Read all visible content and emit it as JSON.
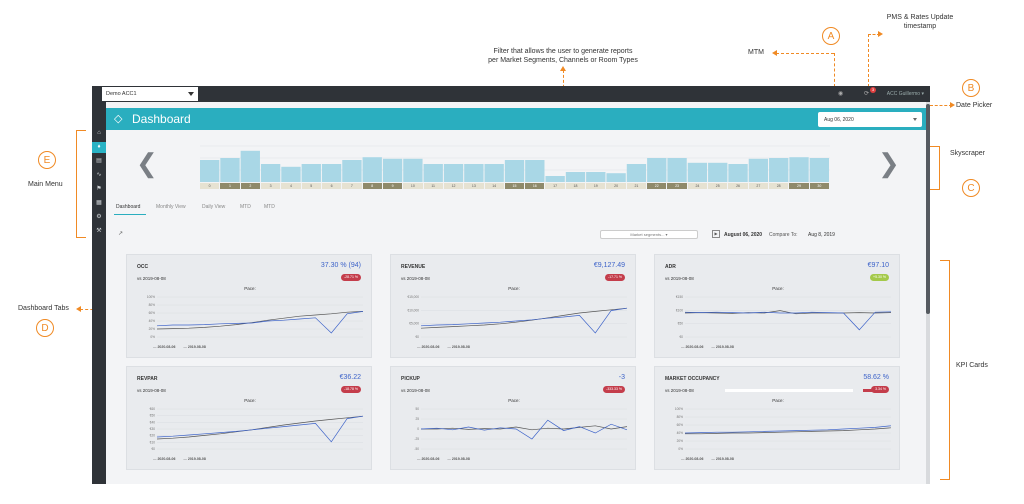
{
  "annotations": {
    "filter_note": "Filter that allows the user to generate reports\nper Market Segments, Channels or Room Types",
    "mtm": "MTM",
    "pms_note": "PMS & Rates Update\ntimestamp",
    "date_picker": "Date Picker",
    "skyscraper": "Skyscraper",
    "kpi_cards": "KPI Cards",
    "main_menu": "Main Menu",
    "dashboard_tabs": "Dashboard Tabs",
    "letters": {
      "a": "A",
      "b": "B",
      "c": "C",
      "d": "D",
      "e": "E"
    },
    "color": "#f08a24"
  },
  "topbar": {
    "account": "Demo ACC1",
    "notification_count": "3",
    "user": "ACC Guillermo ▾"
  },
  "sidebar": {
    "icons": [
      "home-icon",
      "diamond-icon",
      "bed-icon",
      "trend-icon",
      "flag-icon",
      "grid-icon",
      "gear-icon",
      "tools-icon"
    ],
    "active_index": 1
  },
  "header": {
    "title": "Dashboard",
    "date": "Aug 06, 2020",
    "accent": "#2aaebf"
  },
  "skyscraper": {
    "days": [
      "0",
      "1",
      "2",
      "3",
      "4",
      "5",
      "6",
      "7",
      "8",
      "9",
      "10",
      "11",
      "12",
      "13",
      "14",
      "15",
      "16",
      "17",
      "18",
      "19",
      "20",
      "21",
      "22",
      "23",
      "24",
      "25",
      "26",
      "27",
      "28",
      "29",
      "30"
    ],
    "occupancy": [
      0.55,
      0.6,
      0.78,
      0.45,
      0.38,
      0.45,
      0.45,
      0.55,
      0.62,
      0.58,
      0.58,
      0.45,
      0.45,
      0.45,
      0.45,
      0.55,
      0.55,
      0.15,
      0.25,
      0.25,
      0.22,
      0.45,
      0.6,
      0.6,
      0.48,
      0.48,
      0.45,
      0.58,
      0.6,
      0.62,
      0.6
    ],
    "weekend_days": [
      1,
      2,
      8,
      9,
      15,
      16,
      22,
      23,
      29,
      30
    ]
  },
  "tabs": [
    "Dashboard",
    "Monthly View",
    "Daily View",
    "MTD",
    "MTD"
  ],
  "filter": {
    "placeholder": "Market segments...",
    "date": "August 06, 2020",
    "compare_label": "Compare To:",
    "compare_date": "Aug 8, 2019"
  },
  "cards": [
    {
      "label": "OCC",
      "value": "37.30 % (94)",
      "vs": "vs 2019-08-08",
      "badge": "-28.71 %",
      "badge_color": "#c43d4b",
      "pace": "Pace:",
      "yticks": [
        "100%",
        "80%",
        "60%",
        "40%",
        "20%",
        "0%"
      ],
      "legend": [
        "2020-08-06",
        "2019-08-08"
      ]
    },
    {
      "label": "REVENUE",
      "value": "€9,127.49",
      "vs": "vs 2019-08-08",
      "badge": "-17.71 %",
      "badge_color": "#c43d4b",
      "pace": "Pace:",
      "yticks": [
        "€15,000",
        "€10,000",
        "€5,000",
        "€0"
      ],
      "legend": [
        "2020-08-06",
        "2019-08-08"
      ]
    },
    {
      "label": "ADR",
      "value": "€97.10",
      "vs": "vs 2019-08-08",
      "badge": "+5.30 %",
      "badge_color": "#a4c94a",
      "pace": "Pace:",
      "yticks": [
        "€150",
        "€100",
        "€50",
        "€0"
      ],
      "legend": [
        "2020-08-06",
        "2019-08-08"
      ]
    },
    {
      "label": "REVPAR",
      "value": "€36.22",
      "vs": "vs 2019-08-08",
      "badge": "-18.78 %",
      "badge_color": "#c43d4b",
      "pace": "Pace:",
      "yticks": [
        "€60",
        "€50",
        "€40",
        "€30",
        "€20",
        "€10",
        "€0"
      ],
      "legend": [
        "2020-08-06",
        "2019-08-08"
      ]
    },
    {
      "label": "PICKUP",
      "value": "-3",
      "vs": "vs 2019-08-08",
      "badge": "-333.33 %",
      "badge_color": "#c43d4b",
      "pace": "Pace:",
      "yticks": [
        "50",
        "25",
        "0",
        "-25",
        "-50"
      ],
      "legend": [
        "2020-08-06",
        "2019-08-08"
      ]
    },
    {
      "label": "MARKET OCCUPANCY",
      "value": "58.62 %",
      "vs": "vs 2019-08-08",
      "badge": "-3.34 %",
      "badge_color": "#c43d4b",
      "pace": "Pace:",
      "yticks": [
        "100%",
        "80%",
        "60%",
        "40%",
        "20%",
        "0%"
      ],
      "legend": [
        "2020-08-06",
        "2019-08-08"
      ]
    }
  ]
}
